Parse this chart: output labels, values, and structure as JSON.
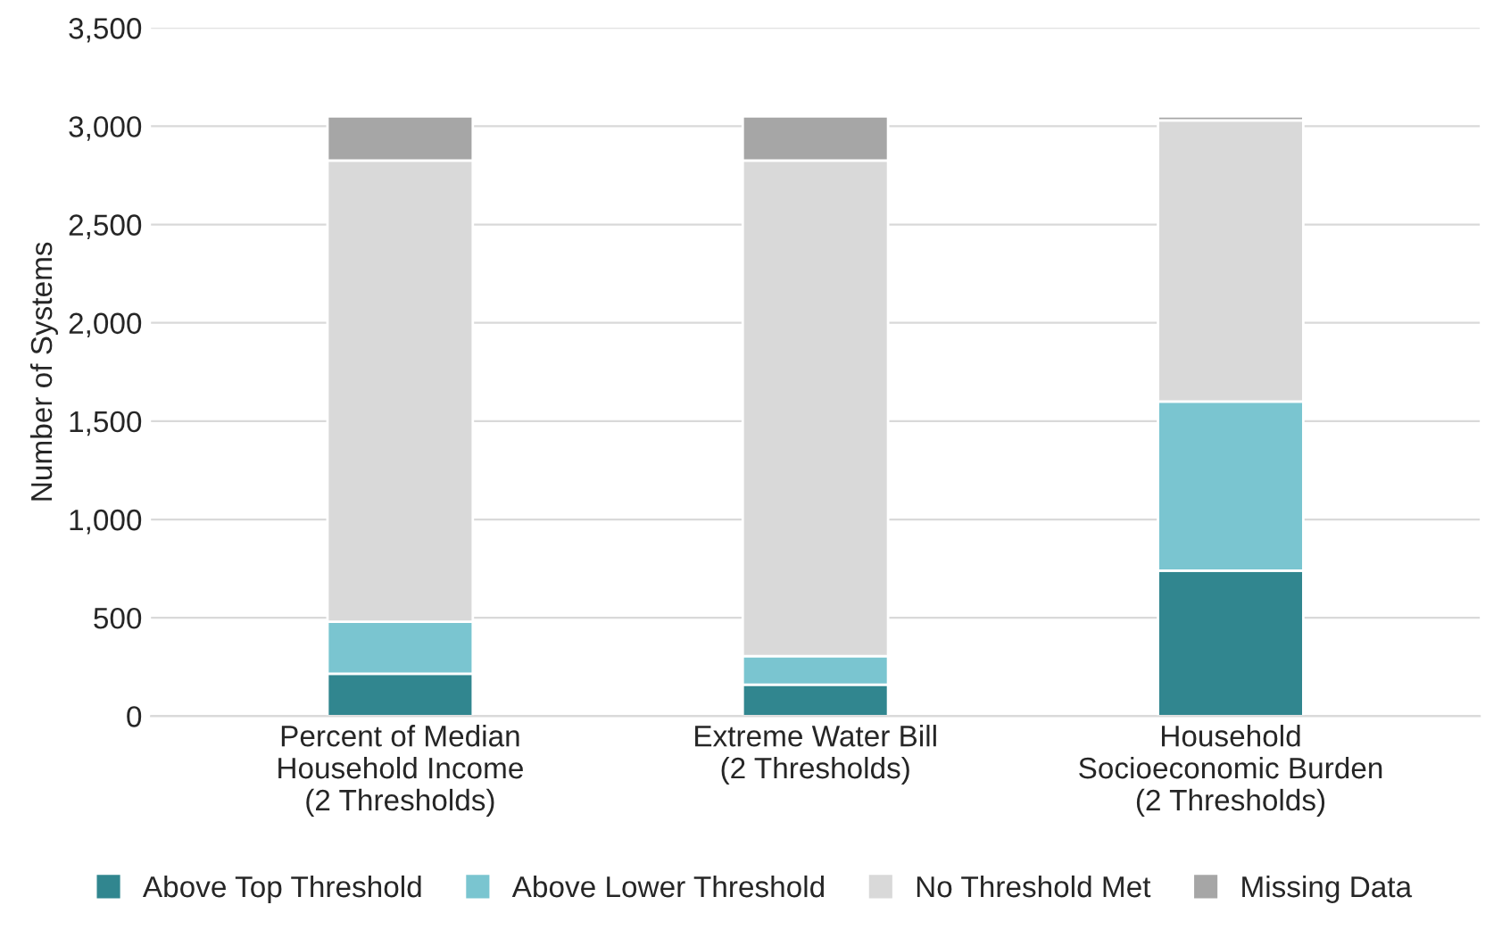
{
  "chart_data": {
    "type": "bar",
    "stacked": true,
    "ylabel": "Number of Systems",
    "categories": [
      "Percent of Median\nHousehold Income\n(2 Thresholds)",
      "Extreme Water Bill\n(2 Thresholds)",
      "Household\nSocioeconomic Burden\n(2 Thresholds)"
    ],
    "series": [
      {
        "name": "Above Top Threshold",
        "color": "#31868f",
        "values": [
          215,
          160,
          740
        ]
      },
      {
        "name": "Above Lower Threshold",
        "color": "#7ac5d0",
        "values": [
          265,
          145,
          860
        ]
      },
      {
        "name": "No Threshold Met",
        "color": "#d9d9d9",
        "values": [
          2345,
          2520,
          1430
        ]
      },
      {
        "name": "Missing Data",
        "color": "#a6a6a6",
        "values": [
          225,
          225,
          20
        ]
      }
    ],
    "ylim": [
      0,
      3500
    ],
    "yticks": [
      {
        "value": 0,
        "label": "0"
      },
      {
        "value": 500,
        "label": "500"
      },
      {
        "value": 1000,
        "label": "1,000"
      },
      {
        "value": 1500,
        "label": "1,500"
      },
      {
        "value": 2000,
        "label": "2,000"
      },
      {
        "value": 2500,
        "label": "2,500"
      },
      {
        "value": 3000,
        "label": "3,000"
      },
      {
        "value": 3500,
        "label": "3,500"
      }
    ],
    "grid": "y",
    "legend": "bottom"
  }
}
